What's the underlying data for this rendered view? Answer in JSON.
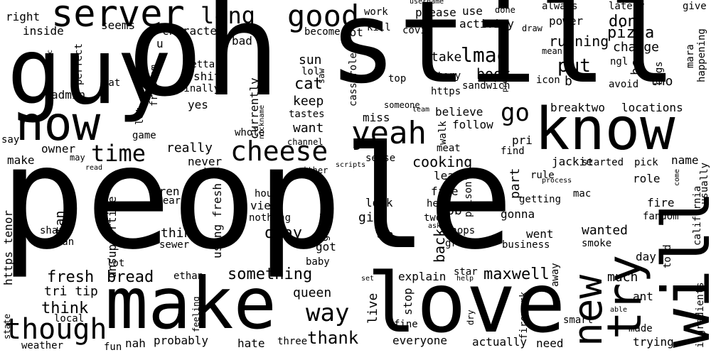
{
  "style": {
    "background": "#ffffff",
    "text_color": "#000000"
  },
  "words": [
    "people",
    "oh",
    "still",
    "guy",
    "know",
    "love",
    "make",
    "will",
    "now",
    "try",
    "server",
    "new",
    "good",
    "yeah",
    "cheese",
    "though",
    "long",
    "time",
    "go",
    "way",
    "pizza",
    "put",
    "lmao",
    "running",
    "don",
    "change",
    "well",
    "fresh",
    "bread",
    "something",
    "maxwell",
    "thank",
    "think",
    "queen",
    "tri tip",
    "https tenor",
    "okay",
    "really",
    "never",
    "owner",
    "make",
    "right",
    "inside",
    "perfect",
    "seems",
    "character",
    "bad",
    "shit",
    "yes",
    "metta",
    "finally",
    "currently",
    "keep",
    "tastes",
    "want",
    "cat",
    "sun",
    "lol",
    "please",
    "work",
    "kill",
    "covid",
    "hot",
    "become",
    "activity",
    "use",
    "username",
    "done",
    "always",
    "lately",
    "give",
    "mara",
    "happening",
    "power",
    "bugs",
    "ngl",
    "tho",
    "avoid",
    "icon",
    "b",
    "book",
    "sandwich",
    "https",
    "story",
    "take",
    "top",
    "saw",
    "eat",
    "freedom",
    "admin",
    "organic",
    "miss",
    "believe",
    "follow",
    "breaktwo",
    "locations",
    "bc",
    "pri",
    "part",
    "jackie",
    "name",
    "find",
    "meat",
    "walk",
    "cooking",
    "least",
    "five",
    "hey",
    "pb",
    "gif",
    "look",
    "view",
    "nothing",
    "house",
    "clear",
    "aren",
    "stan",
    "thing",
    "unsupportive",
    "using fresh",
    "chain",
    "wanted",
    "went",
    "gonna",
    "role",
    "fire",
    "fandom",
    "mac",
    "california",
    "usually",
    "started",
    "getting",
    "rule",
    "process",
    "come",
    "pick",
    "business",
    "smoke",
    "day",
    "told",
    "much",
    "ant",
    "made",
    "trying",
    "ingredients",
    "able",
    "smart",
    "need",
    "actually",
    "firework",
    "away",
    "star",
    "help",
    "dry",
    "fine",
    "stop",
    "live",
    "explain",
    "set",
    "everyone",
    "three",
    "hate",
    "probably",
    "nah",
    "fun",
    "weather",
    "state",
    "local",
    "feeling",
    "ethan",
    "lot",
    "baby",
    "got",
    "genuinely",
    "ton",
    "two",
    "poison",
    "shops",
    "great",
    "ask",
    "sewer",
    "clean",
    "share",
    "say",
    "may",
    "read",
    "scripts",
    "either",
    "channel",
    "whole",
    "game",
    "let",
    "sense",
    "genuinely",
    "mean",
    "draw",
    "present",
    "nickname",
    "someone",
    "team",
    "casserole"
  ]
}
